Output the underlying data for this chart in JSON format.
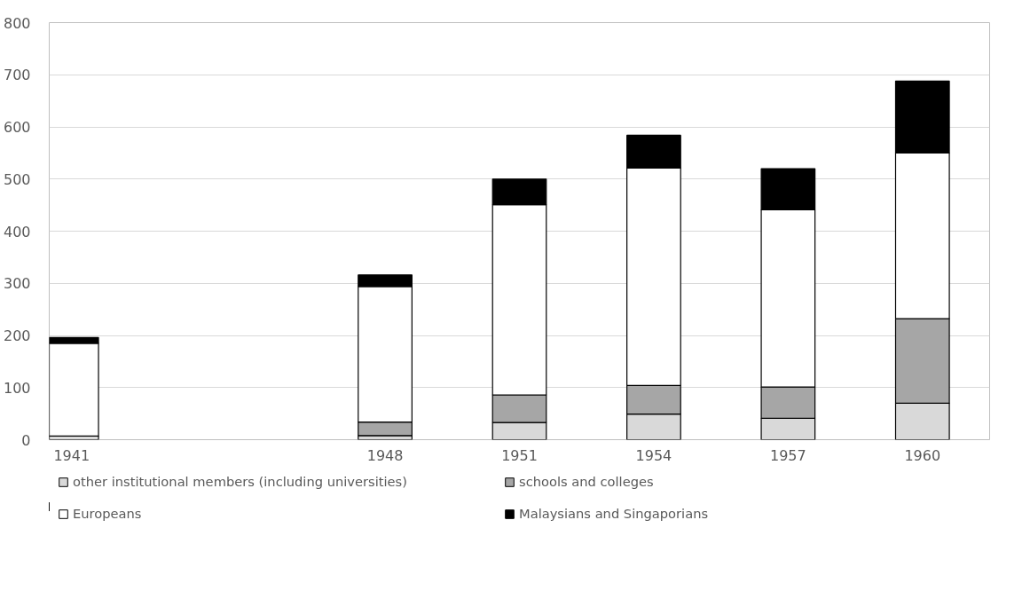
{
  "chart_data": {
    "type": "bar",
    "stacked": true,
    "x": [
      1941,
      1948,
      1951,
      1954,
      1957,
      1960
    ],
    "series": [
      {
        "name": "other institutional members (including universities)",
        "color": "#d9d9d9",
        "values": [
          7,
          8,
          33,
          49,
          41,
          70
        ]
      },
      {
        "name": "schools and colleges",
        "color": "#a6a6a6",
        "values": [
          0,
          26,
          53,
          55,
          60,
          162
        ]
      },
      {
        "name": "Europeans",
        "color": "#ffffff",
        "values": [
          178,
          260,
          365,
          417,
          340,
          318
        ]
      },
      {
        "name": "Malaysians and Singaporians",
        "color": "#000000",
        "values": [
          11,
          22,
          49,
          63,
          79,
          138
        ]
      }
    ],
    "xlim": [
      1940.5,
      1961.5
    ],
    "xticks": [
      1941,
      1948,
      1951,
      1954,
      1957,
      1960
    ],
    "ylim": [
      0,
      800
    ],
    "yticks": [
      0,
      100,
      200,
      300,
      400,
      500,
      600,
      700,
      800
    ],
    "grid": "y",
    "legend": "bottom"
  }
}
